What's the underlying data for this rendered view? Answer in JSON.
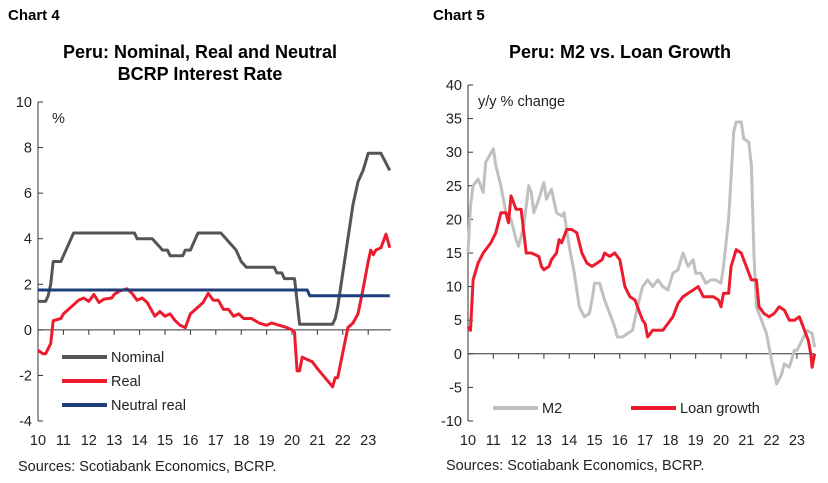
{
  "chart_data": [
    {
      "type": "line",
      "header": "Chart 4",
      "title": [
        "Peru: Nominal, Real and Neutral",
        "BCRP Interest Rate"
      ],
      "ylabel": "%",
      "ylim": [
        -4,
        10
      ],
      "yticks": [
        10,
        8,
        6,
        4,
        2,
        0,
        -2,
        -4
      ],
      "xlim": [
        2010,
        2023.9
      ],
      "xticks": [
        2010,
        2011,
        2012,
        2013,
        2014,
        2015,
        2016,
        2017,
        2018,
        2019,
        2020,
        2021,
        2022,
        2023
      ],
      "xtick_labels": [
        "10",
        "11",
        "12",
        "13",
        "14",
        "15",
        "16",
        "17",
        "18",
        "19",
        "20",
        "21",
        "22",
        "23"
      ],
      "source": "Sources: Scotiabank Economics, BCRP.",
      "legend_position": "bottom-left",
      "series": [
        {
          "name": "Nominal",
          "color": "#555555",
          "x": [
            2010.0,
            2010.3,
            2010.4,
            2010.5,
            2010.6,
            2010.9,
            2011.0,
            2011.4,
            2013.8,
            2013.9,
            2014.5,
            2014.7,
            2014.9,
            2015.1,
            2015.2,
            2015.7,
            2015.8,
            2016.0,
            2016.1,
            2016.3,
            2017.2,
            2017.4,
            2017.6,
            2017.8,
            2018.0,
            2018.2,
            2019.3,
            2019.4,
            2019.6,
            2019.7,
            2020.1,
            2020.2,
            2020.3,
            2021.6,
            2021.7,
            2021.8,
            2022.0,
            2022.2,
            2022.4,
            2022.6,
            2022.8,
            2023.0,
            2023.5,
            2023.85
          ],
          "y": [
            1.25,
            1.25,
            1.5,
            2,
            3,
            3,
            3.25,
            4.25,
            4.25,
            4.0,
            4.0,
            3.75,
            3.5,
            3.5,
            3.25,
            3.25,
            3.5,
            3.5,
            3.75,
            4.25,
            4.25,
            4.0,
            3.75,
            3.5,
            3.0,
            2.75,
            2.75,
            2.5,
            2.5,
            2.25,
            2.25,
            1.25,
            0.25,
            0.25,
            0.5,
            1.0,
            2.5,
            4.0,
            5.5,
            6.5,
            7.0,
            7.75,
            7.75,
            7.0
          ]
        },
        {
          "name": "Real",
          "color": "#ec1c2e",
          "x": [
            2010.0,
            2010.2,
            2010.3,
            2010.5,
            2010.6,
            2010.9,
            2011.0,
            2011.3,
            2011.6,
            2011.8,
            2012.0,
            2012.2,
            2012.4,
            2012.6,
            2012.9,
            2013.0,
            2013.2,
            2013.5,
            2013.7,
            2013.9,
            2014.1,
            2014.3,
            2014.6,
            2014.8,
            2015.0,
            2015.2,
            2015.4,
            2015.6,
            2015.8,
            2016.0,
            2016.3,
            2016.5,
            2016.7,
            2016.9,
            2017.1,
            2017.3,
            2017.5,
            2017.7,
            2017.9,
            2018.1,
            2018.4,
            2018.7,
            2019.0,
            2019.2,
            2019.5,
            2019.8,
            2020.0,
            2020.1,
            2020.2,
            2020.3,
            2020.4,
            2020.6,
            2020.8,
            2021.0,
            2021.3,
            2021.6,
            2021.7,
            2021.8,
            2022.0,
            2022.2,
            2022.4,
            2022.6,
            2022.8,
            2023.0,
            2023.1,
            2023.2,
            2023.3,
            2023.5,
            2023.7,
            2023.85
          ],
          "y": [
            -0.9,
            -1.05,
            -1.05,
            -0.6,
            0.4,
            0.5,
            0.7,
            1.0,
            1.3,
            1.4,
            1.25,
            1.55,
            1.2,
            1.35,
            1.4,
            1.55,
            1.7,
            1.8,
            1.6,
            1.3,
            1.4,
            1.2,
            0.6,
            0.8,
            0.6,
            0.7,
            0.4,
            0.2,
            0.1,
            0.7,
            1.0,
            1.2,
            1.6,
            1.3,
            1.3,
            0.9,
            0.9,
            0.6,
            0.7,
            0.5,
            0.5,
            0.3,
            0.2,
            0.3,
            0.2,
            0.1,
            0.0,
            -0.1,
            -1.8,
            -1.8,
            -1.2,
            -1.3,
            -1.4,
            -1.7,
            -2.1,
            -2.5,
            -2.1,
            -2.1,
            -1.0,
            0.1,
            0.3,
            0.7,
            1.8,
            3.0,
            3.5,
            3.3,
            3.5,
            3.6,
            4.2,
            3.6
          ]
        },
        {
          "name": "Neutral real",
          "color": "#1f3f7a",
          "x": [
            2010.0,
            2020.6,
            2020.7,
            2023.85
          ],
          "y": [
            1.75,
            1.75,
            1.5,
            1.5
          ]
        }
      ]
    },
    {
      "type": "line",
      "header": "Chart 5",
      "title": [
        "Peru: M2 vs. Loan Growth"
      ],
      "ylabel": "y/y % change",
      "ylim": [
        -10,
        40
      ],
      "yticks": [
        40,
        35,
        30,
        25,
        20,
        15,
        10,
        5,
        0,
        -5,
        -10
      ],
      "xlim": [
        2010,
        2023.7
      ],
      "xticks": [
        2010,
        2011,
        2012,
        2013,
        2014,
        2015,
        2016,
        2017,
        2018,
        2019,
        2020,
        2021,
        2022,
        2023
      ],
      "xtick_labels": [
        "10",
        "11",
        "12",
        "13",
        "14",
        "15",
        "16",
        "17",
        "18",
        "19",
        "20",
        "21",
        "22",
        "23"
      ],
      "source": "Sources: Scotiabank Economics, BCRP.",
      "legend_position": "bottom",
      "series": [
        {
          "name": "M2",
          "color": "#c0c0c0",
          "x": [
            2010.0,
            2010.1,
            2010.2,
            2010.4,
            2010.6,
            2010.7,
            2011.0,
            2011.1,
            2011.3,
            2011.5,
            2011.7,
            2011.9,
            2012.0,
            2012.2,
            2012.4,
            2012.5,
            2012.6,
            2012.8,
            2013.0,
            2013.1,
            2013.3,
            2013.5,
            2013.7,
            2013.8,
            2014.0,
            2014.2,
            2014.4,
            2014.6,
            2014.8,
            2014.9,
            2015.0,
            2015.2,
            2015.4,
            2015.6,
            2015.8,
            2015.9,
            2016.1,
            2016.3,
            2016.5,
            2016.7,
            2016.9,
            2017.1,
            2017.3,
            2017.5,
            2017.7,
            2017.9,
            2018.1,
            2018.3,
            2018.5,
            2018.7,
            2018.9,
            2019.0,
            2019.2,
            2019.4,
            2019.6,
            2019.8,
            2020.0,
            2020.1,
            2020.3,
            2020.5,
            2020.6,
            2020.8,
            2020.9,
            2021.1,
            2021.2,
            2021.3,
            2021.4,
            2021.6,
            2021.8,
            2022.0,
            2022.2,
            2022.4,
            2022.5,
            2022.7,
            2022.9,
            2023.0,
            2023.2,
            2023.4,
            2023.6,
            2023.7
          ],
          "y": [
            15,
            22,
            25,
            26,
            24,
            28.5,
            30.5,
            28,
            25,
            21,
            20,
            17,
            16,
            19,
            25,
            24,
            21,
            23,
            25.5,
            23,
            24.5,
            21,
            20.5,
            21,
            16,
            12,
            7,
            5.5,
            6,
            8,
            10.5,
            10.5,
            8,
            6,
            4,
            2.5,
            2.5,
            3,
            3.5,
            7,
            10,
            11,
            10,
            11,
            10,
            9.5,
            12,
            12.5,
            15,
            13,
            14,
            12,
            12,
            10.5,
            11,
            11,
            10.5,
            13,
            20,
            33,
            34.5,
            34.5,
            32,
            31.5,
            28,
            15,
            7,
            5,
            3,
            -1,
            -4.5,
            -3,
            -1.5,
            -2,
            0.5,
            0.5,
            2,
            3.5,
            3,
            1
          ]
        },
        {
          "name": "Loan growth",
          "color": "#ec1c2e",
          "x": [
            2010.0,
            2010.1,
            2010.2,
            2010.4,
            2010.6,
            2010.9,
            2011.1,
            2011.3,
            2011.5,
            2011.6,
            2011.7,
            2011.9,
            2012.1,
            2012.3,
            2012.5,
            2012.8,
            2012.9,
            2013.0,
            2013.2,
            2013.3,
            2013.5,
            2013.6,
            2013.7,
            2013.9,
            2014.1,
            2014.3,
            2014.5,
            2014.7,
            2014.9,
            2015.1,
            2015.3,
            2015.4,
            2015.6,
            2015.8,
            2016.0,
            2016.2,
            2016.4,
            2016.6,
            2016.8,
            2016.9,
            2017.0,
            2017.1,
            2017.3,
            2017.5,
            2017.7,
            2017.9,
            2018.1,
            2018.3,
            2018.5,
            2018.7,
            2018.9,
            2019.1,
            2019.3,
            2019.5,
            2019.7,
            2019.9,
            2020.0,
            2020.1,
            2020.3,
            2020.4,
            2020.6,
            2020.8,
            2021.0,
            2021.2,
            2021.4,
            2021.5,
            2021.7,
            2021.9,
            2022.1,
            2022.3,
            2022.5,
            2022.7,
            2022.9,
            2023.1,
            2023.3,
            2023.45,
            2023.55,
            2023.6,
            2023.7
          ],
          "y": [
            4,
            3.5,
            11,
            13.5,
            15,
            16.5,
            18,
            21,
            21,
            19.5,
            23.5,
            21.5,
            21.5,
            15,
            15,
            14.5,
            13,
            12.5,
            13,
            14,
            15,
            17,
            16.5,
            18.5,
            18.5,
            18,
            15,
            13.5,
            13,
            13.5,
            14,
            15,
            14.5,
            15,
            14,
            10,
            8.5,
            8,
            6,
            5,
            4.5,
            2.5,
            3.5,
            3.5,
            3.5,
            4.5,
            5.5,
            7.5,
            8.5,
            9,
            9.5,
            10,
            8.5,
            8.5,
            8.5,
            8,
            7,
            9,
            9,
            13,
            15.5,
            15,
            13,
            11,
            11,
            7,
            6,
            5.5,
            6,
            7,
            6.5,
            5,
            5,
            5.5,
            3.5,
            2,
            0,
            -2,
            0
          ]
        }
      ]
    }
  ]
}
